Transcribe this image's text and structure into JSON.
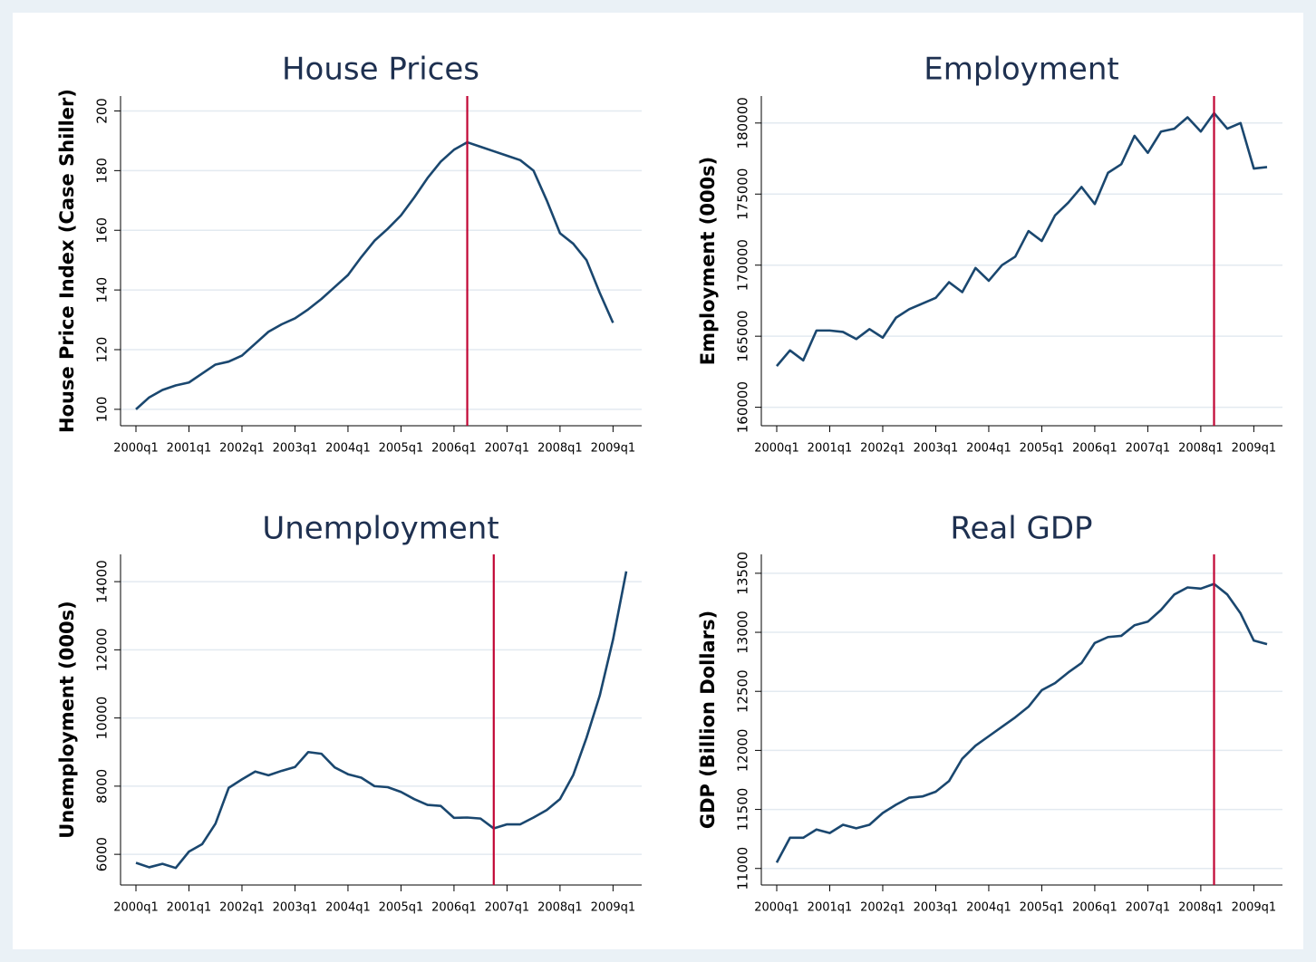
{
  "chart_data": [
    {
      "type": "line",
      "title": "House Prices",
      "ylabel": "House Price Index (Case Shiller)",
      "x": [
        "2000q1",
        "2000q2",
        "2000q3",
        "2000q4",
        "2001q1",
        "2001q2",
        "2001q3",
        "2001q4",
        "2002q1",
        "2002q2",
        "2002q3",
        "2002q4",
        "2003q1",
        "2003q2",
        "2003q3",
        "2003q4",
        "2004q1",
        "2004q2",
        "2004q3",
        "2004q4",
        "2005q1",
        "2005q2",
        "2005q3",
        "2005q4",
        "2006q1",
        "2006q2",
        "2006q3",
        "2006q4",
        "2007q1",
        "2007q2",
        "2007q3",
        "2007q4",
        "2008q1",
        "2008q2",
        "2008q3",
        "2008q4",
        "2009q1"
      ],
      "values": [
        100,
        104,
        106.5,
        108,
        109,
        112,
        115,
        116,
        118,
        122,
        126,
        128.5,
        130.5,
        133.5,
        137,
        141,
        145,
        151,
        156.5,
        160.5,
        165,
        171,
        177.5,
        183,
        187,
        189.5,
        188,
        186.5,
        185,
        183.5,
        180,
        170,
        159,
        155.5,
        150,
        139,
        129
      ],
      "color": "#1a476f",
      "xticks": [
        "2000q1",
        "2001q1",
        "2002q1",
        "2003q1",
        "2004q1",
        "2005q1",
        "2006q1",
        "2007q1",
        "2008q1",
        "2009q1"
      ],
      "ylim": [
        94.5,
        205
      ],
      "yticks": [
        100,
        120,
        140,
        160,
        180,
        200
      ],
      "grid": true,
      "reference_line": {
        "x": "2006q2",
        "color": "#c10534"
      }
    },
    {
      "type": "line",
      "title": "Employment",
      "ylabel": "Employment (000s)",
      "x": [
        "2000q1",
        "2000q2",
        "2000q3",
        "2000q4",
        "2001q1",
        "2001q2",
        "2001q3",
        "2001q4",
        "2002q1",
        "2002q2",
        "2002q3",
        "2002q4",
        "2003q1",
        "2003q2",
        "2003q3",
        "2003q4",
        "2004q1",
        "2004q2",
        "2004q3",
        "2004q4",
        "2005q1",
        "2005q2",
        "2005q3",
        "2005q4",
        "2006q1",
        "2006q2",
        "2006q3",
        "2006q4",
        "2007q1",
        "2007q2",
        "2007q3",
        "2007q4",
        "2008q1",
        "2008q2",
        "2008q3",
        "2008q4",
        "2009q1",
        "2009q2"
      ],
      "values": [
        162900,
        164000,
        163300,
        165400,
        165400,
        165300,
        164800,
        165500,
        164900,
        166300,
        166900,
        167300,
        167700,
        168800,
        168100,
        169800,
        168900,
        170000,
        170600,
        172400,
        171700,
        173500,
        174400,
        175500,
        174300,
        176500,
        177100,
        179100,
        177900,
        179400,
        179600,
        180400,
        179400,
        180700,
        179600,
        180000,
        176800,
        176900
      ],
      "color": "#1a476f",
      "xticks": [
        "2000q1",
        "2001q1",
        "2002q1",
        "2003q1",
        "2004q1",
        "2005q1",
        "2006q1",
        "2007q1",
        "2008q1",
        "2009q1"
      ],
      "ylim": [
        158700,
        181900
      ],
      "yticks": [
        160000,
        165000,
        170000,
        175000,
        180000
      ],
      "grid": true,
      "reference_line": {
        "x": "2008q2",
        "color": "#c10534"
      }
    },
    {
      "type": "line",
      "title": "Unemployment",
      "ylabel": "Unemployment (000s)",
      "x": [
        "2000q1",
        "2000q2",
        "2000q3",
        "2000q4",
        "2001q1",
        "2001q2",
        "2001q3",
        "2001q4",
        "2002q1",
        "2002q2",
        "2002q3",
        "2002q4",
        "2003q1",
        "2003q2",
        "2003q3",
        "2003q4",
        "2004q1",
        "2004q2",
        "2004q3",
        "2004q4",
        "2005q1",
        "2005q2",
        "2005q3",
        "2005q4",
        "2006q1",
        "2006q2",
        "2006q3",
        "2006q4",
        "2007q1",
        "2007q2",
        "2007q3",
        "2007q4",
        "2008q1",
        "2008q2",
        "2008q3",
        "2008q4",
        "2009q1",
        "2009q2"
      ],
      "values": [
        5750,
        5620,
        5720,
        5600,
        6080,
        6300,
        6900,
        7950,
        8200,
        8430,
        8320,
        8450,
        8560,
        9000,
        8950,
        8550,
        8350,
        8250,
        8000,
        7970,
        7830,
        7620,
        7450,
        7420,
        7070,
        7080,
        7050,
        6760,
        6880,
        6880,
        7080,
        7300,
        7620,
        8330,
        9420,
        10660,
        12300,
        14300
      ],
      "color": "#1a476f",
      "xticks": [
        "2000q1",
        "2001q1",
        "2002q1",
        "2003q1",
        "2004q1",
        "2005q1",
        "2006q1",
        "2007q1",
        "2008q1",
        "2009q1"
      ],
      "ylim": [
        5100,
        14800
      ],
      "yticks": [
        6000,
        8000,
        10000,
        12000,
        14000
      ],
      "grid": true,
      "reference_line": {
        "x": "2006q4",
        "color": "#c10534"
      }
    },
    {
      "type": "line",
      "title": "Real GDP",
      "ylabel": "GDP (Billion Dollars)",
      "x": [
        "2000q1",
        "2000q2",
        "2000q3",
        "2000q4",
        "2001q1",
        "2001q2",
        "2001q3",
        "2001q4",
        "2002q1",
        "2002q2",
        "2002q3",
        "2002q4",
        "2003q1",
        "2003q2",
        "2003q3",
        "2003q4",
        "2004q1",
        "2004q2",
        "2004q3",
        "2004q4",
        "2005q1",
        "2005q2",
        "2005q3",
        "2005q4",
        "2006q1",
        "2006q2",
        "2006q3",
        "2006q4",
        "2007q1",
        "2007q2",
        "2007q3",
        "2007q4",
        "2008q1",
        "2008q2",
        "2008q3",
        "2008q4",
        "2009q1",
        "2009q2"
      ],
      "values": [
        11050,
        11260,
        11260,
        11330,
        11300,
        11370,
        11340,
        11370,
        11470,
        11540,
        11600,
        11610,
        11650,
        11740,
        11930,
        12040,
        12120,
        12200,
        12280,
        12370,
        12510,
        12570,
        12660,
        12740,
        12910,
        12960,
        12970,
        13060,
        13090,
        13190,
        13320,
        13380,
        13370,
        13410,
        13320,
        13160,
        12930,
        12900
      ],
      "color": "#1a476f",
      "xticks": [
        "2000q1",
        "2001q1",
        "2002q1",
        "2003q1",
        "2004q1",
        "2005q1",
        "2006q1",
        "2007q1",
        "2008q1",
        "2009q1"
      ],
      "ylim": [
        10860,
        13660
      ],
      "yticks": [
        11000,
        11500,
        12000,
        12500,
        13000,
        13500
      ],
      "grid": true,
      "reference_line": {
        "x": "2008q2",
        "color": "#c10534"
      }
    }
  ]
}
